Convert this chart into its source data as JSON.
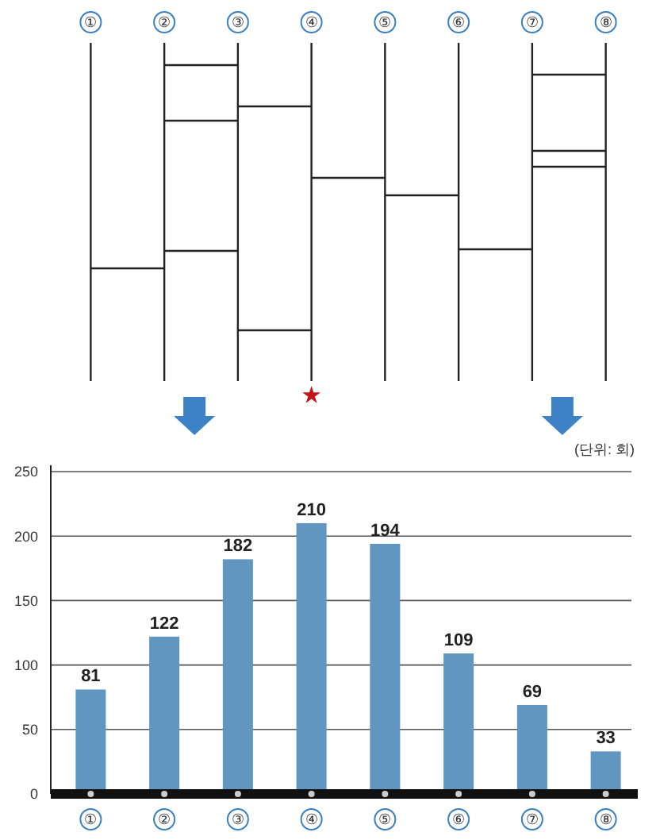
{
  "chart_data": {
    "type": "bar",
    "categories": [
      "①",
      "②",
      "③",
      "④",
      "⑤",
      "⑥",
      "⑦",
      "⑧"
    ],
    "values": [
      81,
      122,
      182,
      210,
      194,
      109,
      69,
      33
    ],
    "color": "#6096c0",
    "data_labels": true,
    "ylim": [
      0,
      250
    ],
    "yticks": [
      0,
      50,
      100,
      150,
      200,
      250
    ],
    "grid": "y",
    "annotations": [
      "(단위: 회)"
    ]
  }
}
